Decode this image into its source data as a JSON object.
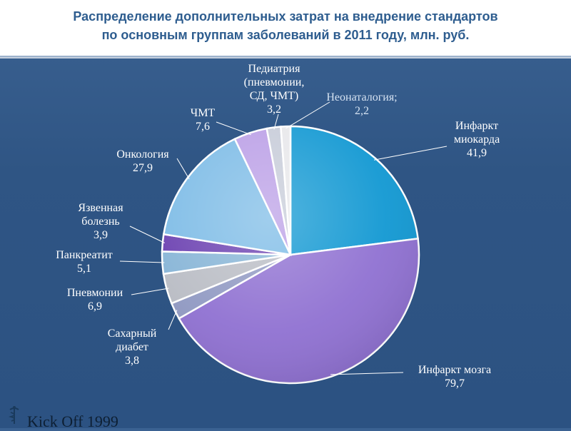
{
  "title_line1": "Распределение дополнительных затрат на внедрение стандартов",
  "title_line2": "по основным группам заболеваний в 2011 году, млн. руб.",
  "footer": {
    "text": "Kick Off 1999",
    "logo_icon": "caduceus-logo-icon"
  },
  "chart_data": {
    "type": "pie",
    "title": "Распределение дополнительных затрат на внедрение стандартов по основным группам заболеваний в 2011 году, млн. руб.",
    "slices": [
      {
        "key": "im",
        "label_lines": [
          "Инфаркт",
          "миокарда"
        ],
        "value_text": "41,9",
        "value": 41.9,
        "color": "#0f97d2"
      },
      {
        "key": "imz",
        "label_lines": [
          "Инфаркт мозга"
        ],
        "value_text": "79,7",
        "value": 79.7,
        "color": "#8e6fd1"
      },
      {
        "key": "sd",
        "label_lines": [
          "Сахарный",
          "диабет"
        ],
        "value_text": "3,8",
        "value": 3.8,
        "color": "#8f98c2"
      },
      {
        "key": "pnev",
        "label_lines": [
          "Пневмонии"
        ],
        "value_text": "6,9",
        "value": 6.9,
        "color": "#b9bcc4"
      },
      {
        "key": "pankr",
        "label_lines": [
          "Панкреатит"
        ],
        "value_text": "5,1",
        "value": 5.1,
        "color": "#86b4d6"
      },
      {
        "key": "yazv",
        "label_lines": [
          "Язвенная",
          "болезнь"
        ],
        "value_text": "3,9",
        "value": 3.9,
        "color": "#6a3fb0"
      },
      {
        "key": "onko",
        "label_lines": [
          "Онкология"
        ],
        "value_text": "27,9",
        "value": 27.9,
        "color": "#7cbbe6"
      },
      {
        "key": "chmt",
        "label_lines": [
          "ЧМТ"
        ],
        "value_text": "7,6",
        "value": 7.6,
        "color": "#ba9ee6"
      },
      {
        "key": "ped",
        "label_lines": [
          "Педиатрия",
          "(пневмонии,",
          "СД, ЧМТ)"
        ],
        "value_text": "3,2",
        "value": 3.2,
        "color": "#c6cbd8"
      },
      {
        "key": "neo",
        "label_lines": [
          "Неонаталогия;"
        ],
        "value_text": "2,2",
        "value": 2.2,
        "color": "#e7e7ea"
      }
    ]
  }
}
